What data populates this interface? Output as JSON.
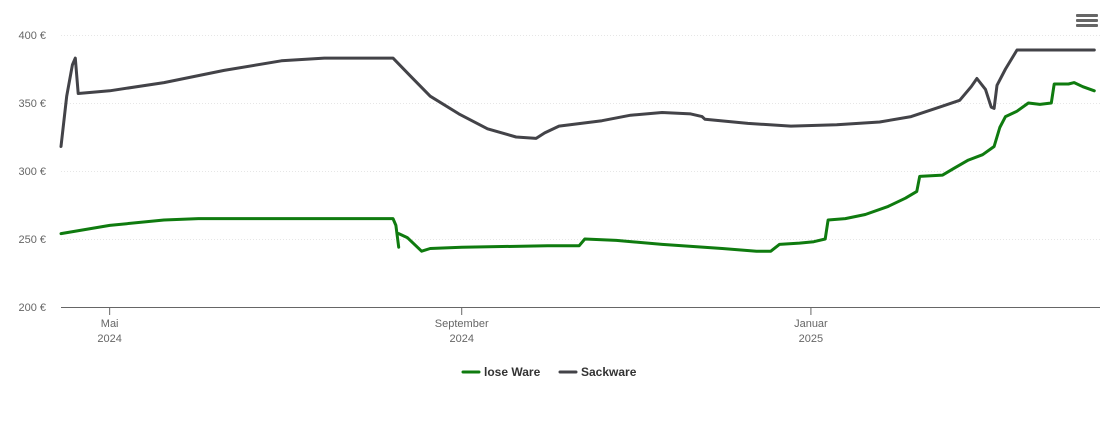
{
  "chart_data": {
    "type": "line",
    "title": "",
    "xlabel": "",
    "ylabel": "",
    "ylim": [
      200,
      400
    ],
    "yticks": [
      "200 €",
      "250 €",
      "300 €",
      "350 €",
      "400 €"
    ],
    "ytick_values": [
      200,
      250,
      300,
      350,
      400
    ],
    "xticks": [
      {
        "date": "2024-05-01",
        "month": "Mai",
        "year": "2024"
      },
      {
        "date": "2024-09-01",
        "month": "September",
        "year": "2024"
      },
      {
        "date": "2025-01-01",
        "month": "Januar",
        "year": "2025"
      }
    ],
    "xrange": [
      "2024-04-14",
      "2025-04-12"
    ],
    "grid": true,
    "legend_position": "bottom-center",
    "series": [
      {
        "name": "lose Ware",
        "color": "#0f7b0f",
        "segments": [
          [
            [
              "2024-04-14",
              254
            ],
            [
              "2024-05-01",
              260
            ],
            [
              "2024-05-20",
              264
            ],
            [
              "2024-06-01",
              265
            ],
            [
              "2024-07-01",
              265
            ],
            [
              "2024-08-01",
              265
            ],
            [
              "2024-08-08",
              265
            ],
            [
              "2024-08-09",
              260
            ],
            [
              "2024-08-10",
              244
            ]
          ],
          [
            [
              "2024-08-10",
              254
            ],
            [
              "2024-08-13",
              251
            ],
            [
              "2024-08-18",
              241
            ],
            [
              "2024-08-21",
              243
            ],
            [
              "2024-09-01",
              244
            ],
            [
              "2024-10-01",
              245
            ],
            [
              "2024-10-12",
              245
            ],
            [
              "2024-10-14",
              250
            ],
            [
              "2024-10-25",
              249
            ],
            [
              "2024-11-10",
              246
            ],
            [
              "2024-12-01",
              243
            ],
            [
              "2024-12-13",
              241
            ],
            [
              "2024-12-18",
              241
            ],
            [
              "2024-12-21",
              246
            ],
            [
              "2024-12-28",
              247
            ],
            [
              "2025-01-02",
              248
            ],
            [
              "2025-01-06",
              250
            ],
            [
              "2025-01-07",
              264
            ],
            [
              "2025-01-13",
              265
            ],
            [
              "2025-01-20",
              268
            ],
            [
              "2025-01-28",
              274
            ],
            [
              "2025-02-03",
              280
            ],
            [
              "2025-02-07",
              285
            ],
            [
              "2025-02-08",
              296
            ],
            [
              "2025-02-16",
              297
            ],
            [
              "2025-02-20",
              302
            ],
            [
              "2025-02-25",
              308
            ],
            [
              "2025-03-02",
              312
            ],
            [
              "2025-03-06",
              318
            ],
            [
              "2025-03-08",
              332
            ],
            [
              "2025-03-10",
              340
            ],
            [
              "2025-03-14",
              344
            ],
            [
              "2025-03-18",
              350
            ],
            [
              "2025-03-22",
              349
            ],
            [
              "2025-03-26",
              350
            ],
            [
              "2025-03-27",
              364
            ],
            [
              "2025-04-01",
              364
            ],
            [
              "2025-04-03",
              365
            ],
            [
              "2025-04-06",
              362
            ],
            [
              "2025-04-10",
              359
            ]
          ]
        ]
      },
      {
        "name": "Sackware",
        "color": "#434348",
        "segments": [
          [
            [
              "2024-04-14",
              318
            ],
            [
              "2024-04-16",
              355
            ],
            [
              "2024-04-18",
              378
            ],
            [
              "2024-04-19",
              383
            ],
            [
              "2024-04-20",
              357
            ],
            [
              "2024-05-01",
              359
            ],
            [
              "2024-05-20",
              365
            ],
            [
              "2024-06-10",
              374
            ],
            [
              "2024-06-30",
              381
            ],
            [
              "2024-07-15",
              383
            ],
            [
              "2024-08-01",
              383
            ],
            [
              "2024-08-08",
              383
            ],
            [
              "2024-08-14",
              370
            ],
            [
              "2024-08-21",
              355
            ],
            [
              "2024-08-31",
              342
            ],
            [
              "2024-09-10",
              331
            ],
            [
              "2024-09-20",
              325
            ],
            [
              "2024-09-27",
              324
            ],
            [
              "2024-09-30",
              328
            ],
            [
              "2024-10-05",
              333
            ],
            [
              "2024-10-20",
              337
            ],
            [
              "2024-10-30",
              341
            ],
            [
              "2024-11-10",
              343
            ],
            [
              "2024-11-20",
              342
            ],
            [
              "2024-11-24",
              340
            ],
            [
              "2024-11-25",
              338
            ],
            [
              "2024-12-10",
              335
            ],
            [
              "2024-12-25",
              333
            ],
            [
              "2025-01-10",
              334
            ],
            [
              "2025-01-25",
              336
            ],
            [
              "2025-02-05",
              340
            ],
            [
              "2025-02-15",
              347
            ],
            [
              "2025-02-22",
              352
            ],
            [
              "2025-02-26",
              362
            ],
            [
              "2025-02-28",
              368
            ],
            [
              "2025-03-03",
              360
            ],
            [
              "2025-03-05",
              347
            ],
            [
              "2025-03-06",
              346
            ],
            [
              "2025-03-07",
              363
            ],
            [
              "2025-03-10",
              375
            ],
            [
              "2025-03-14",
              389
            ],
            [
              "2025-03-20",
              389
            ],
            [
              "2025-03-31",
              389
            ],
            [
              "2025-04-10",
              389
            ]
          ]
        ]
      }
    ]
  },
  "legend": {
    "items": [
      {
        "label": "lose Ware",
        "color": "#0f7b0f"
      },
      {
        "label": "Sackware",
        "color": "#434348"
      }
    ]
  },
  "menu": {
    "icon": "hamburger-menu-icon"
  }
}
